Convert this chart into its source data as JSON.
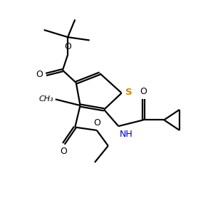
{
  "background_color": "#ffffff",
  "line_color": "#000000",
  "S_color": "#cc8800",
  "N_color": "#0000cc",
  "line_width": 1.6,
  "figsize": [
    2.92,
    2.99
  ],
  "dpi": 100,
  "xlim": [
    0,
    10
  ],
  "ylim": [
    0,
    10
  ]
}
